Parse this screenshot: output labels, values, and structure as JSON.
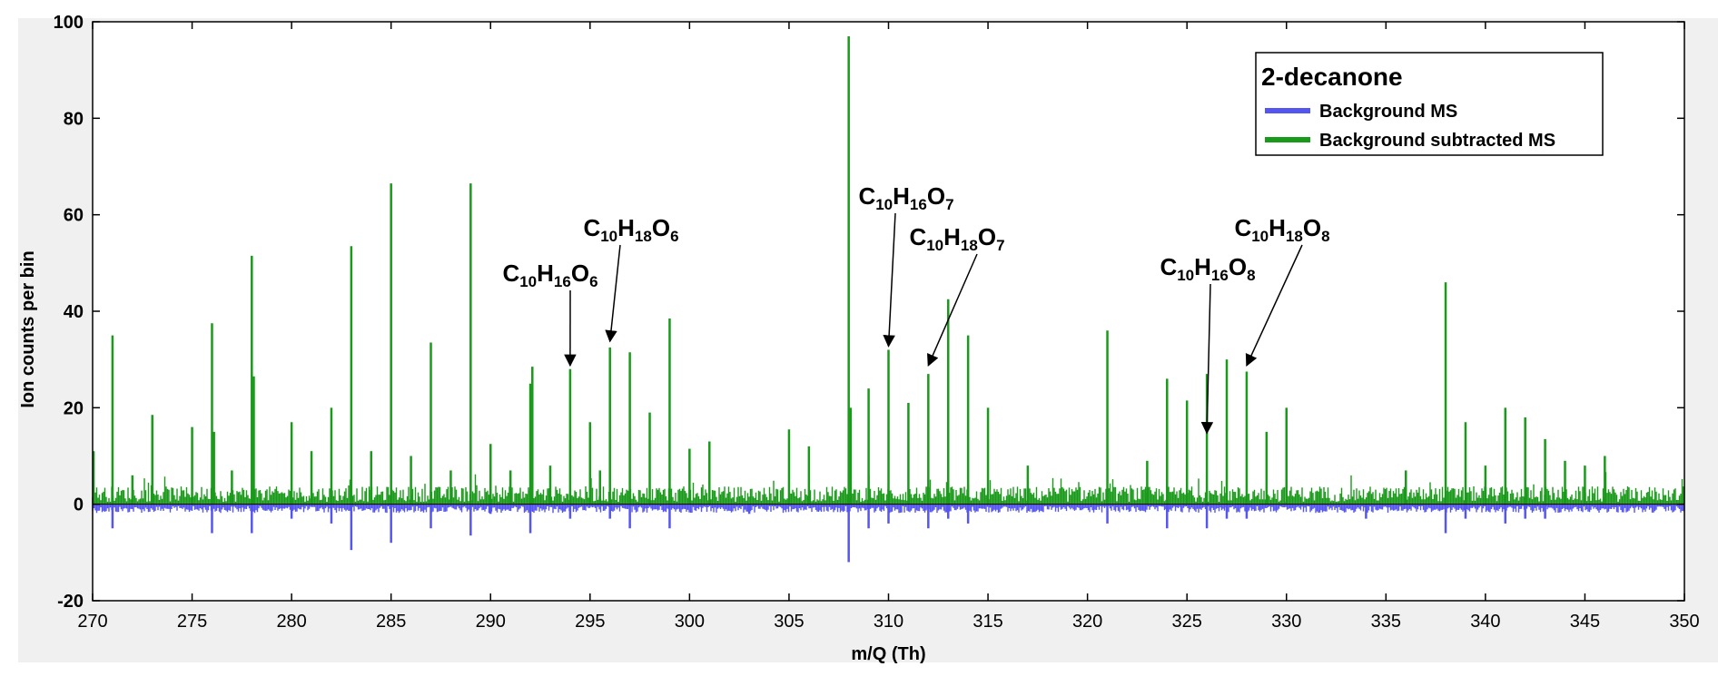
{
  "chart_data": {
    "type": "line",
    "title": "",
    "xlabel": "m/Q (Th)",
    "ylabel": "Ion counts per bin",
    "xlim": [
      270,
      350
    ],
    "ylim": [
      -20,
      100
    ],
    "xticks": [
      270,
      275,
      280,
      285,
      290,
      295,
      300,
      305,
      310,
      315,
      320,
      325,
      330,
      335,
      340,
      345,
      350
    ],
    "yticks": [
      -20,
      0,
      20,
      40,
      60,
      80,
      100
    ],
    "grid": false,
    "legend": {
      "title": "2-decanone",
      "placement": "top-right",
      "entries": [
        "Background MS",
        "Background subtracted MS"
      ]
    },
    "colors": {
      "background": "#5555f0",
      "subtracted": "#1a9a1a",
      "plot_bg": "#ffffff",
      "frame_bg": "#f0f0f0"
    },
    "series": [
      {
        "name": "Background MS",
        "peaks": [
          {
            "x": 271.0,
            "y": -5
          },
          {
            "x": 276.0,
            "y": -6
          },
          {
            "x": 278.0,
            "y": -6
          },
          {
            "x": 280.0,
            "y": -3
          },
          {
            "x": 282.0,
            "y": -4
          },
          {
            "x": 283.0,
            "y": -9.5
          },
          {
            "x": 285.0,
            "y": -8
          },
          {
            "x": 287.0,
            "y": -5
          },
          {
            "x": 289.0,
            "y": -6.5
          },
          {
            "x": 290.0,
            "y": -2
          },
          {
            "x": 292.0,
            "y": -6
          },
          {
            "x": 294.0,
            "y": -3
          },
          {
            "x": 296.0,
            "y": -3
          },
          {
            "x": 297.0,
            "y": -5
          },
          {
            "x": 299.0,
            "y": -5
          },
          {
            "x": 303.0,
            "y": -2
          },
          {
            "x": 308.0,
            "y": -12
          },
          {
            "x": 309.0,
            "y": -5
          },
          {
            "x": 310.0,
            "y": -4
          },
          {
            "x": 312.0,
            "y": -5
          },
          {
            "x": 313.0,
            "y": -3
          },
          {
            "x": 314.0,
            "y": -4
          },
          {
            "x": 321.0,
            "y": -4
          },
          {
            "x": 324.0,
            "y": -5
          },
          {
            "x": 326.0,
            "y": -5
          },
          {
            "x": 327.0,
            "y": -3
          },
          {
            "x": 328.0,
            "y": -3
          },
          {
            "x": 334.0,
            "y": -3
          },
          {
            "x": 338.0,
            "y": -6
          },
          {
            "x": 339.0,
            "y": -3
          },
          {
            "x": 341.0,
            "y": -4
          },
          {
            "x": 342.0,
            "y": -3
          },
          {
            "x": 343.0,
            "y": -3
          }
        ]
      },
      {
        "name": "Background subtracted MS",
        "peaks": [
          {
            "x": 270.05,
            "y": 11
          },
          {
            "x": 271.0,
            "y": 35
          },
          {
            "x": 272.0,
            "y": 6
          },
          {
            "x": 273.0,
            "y": 18.5
          },
          {
            "x": 275.0,
            "y": 16
          },
          {
            "x": 276.0,
            "y": 37.5
          },
          {
            "x": 276.1,
            "y": 15
          },
          {
            "x": 277.0,
            "y": 7
          },
          {
            "x": 278.0,
            "y": 51.5
          },
          {
            "x": 278.1,
            "y": 26.5
          },
          {
            "x": 280.0,
            "y": 17
          },
          {
            "x": 281.0,
            "y": 11
          },
          {
            "x": 282.0,
            "y": 20
          },
          {
            "x": 283.0,
            "y": 53.5
          },
          {
            "x": 284.0,
            "y": 11
          },
          {
            "x": 285.0,
            "y": 66.5
          },
          {
            "x": 286.0,
            "y": 10
          },
          {
            "x": 287.0,
            "y": 33.5
          },
          {
            "x": 288.0,
            "y": 7
          },
          {
            "x": 289.0,
            "y": 66.5
          },
          {
            "x": 290.0,
            "y": 12.5
          },
          {
            "x": 291.0,
            "y": 7
          },
          {
            "x": 292.0,
            "y": 25
          },
          {
            "x": 292.1,
            "y": 28.5
          },
          {
            "x": 293.0,
            "y": 8
          },
          {
            "x": 294.0,
            "y": 28
          },
          {
            "x": 295.0,
            "y": 17
          },
          {
            "x": 295.5,
            "y": 7
          },
          {
            "x": 296.0,
            "y": 32.5
          },
          {
            "x": 297.0,
            "y": 31.5
          },
          {
            "x": 298.0,
            "y": 19
          },
          {
            "x": 299.0,
            "y": 38.5
          },
          {
            "x": 300.0,
            "y": 11.5
          },
          {
            "x": 301.0,
            "y": 13
          },
          {
            "x": 305.0,
            "y": 15.5
          },
          {
            "x": 306.0,
            "y": 12
          },
          {
            "x": 308.0,
            "y": 97
          },
          {
            "x": 308.1,
            "y": 20
          },
          {
            "x": 309.0,
            "y": 24
          },
          {
            "x": 310.0,
            "y": 32
          },
          {
            "x": 311.0,
            "y": 21
          },
          {
            "x": 312.0,
            "y": 27
          },
          {
            "x": 313.0,
            "y": 42.5
          },
          {
            "x": 314.0,
            "y": 35
          },
          {
            "x": 315.0,
            "y": 20
          },
          {
            "x": 317.0,
            "y": 8
          },
          {
            "x": 321.0,
            "y": 36
          },
          {
            "x": 323.0,
            "y": 9
          },
          {
            "x": 324.0,
            "y": 26
          },
          {
            "x": 325.0,
            "y": 21.5
          },
          {
            "x": 326.0,
            "y": 27
          },
          {
            "x": 327.0,
            "y": 30
          },
          {
            "x": 328.0,
            "y": 27.5
          },
          {
            "x": 329.0,
            "y": 15
          },
          {
            "x": 330.0,
            "y": 20
          },
          {
            "x": 336.0,
            "y": 7
          },
          {
            "x": 338.0,
            "y": 46
          },
          {
            "x": 339.0,
            "y": 17
          },
          {
            "x": 340.0,
            "y": 8
          },
          {
            "x": 341.0,
            "y": 20
          },
          {
            "x": 342.0,
            "y": 18
          },
          {
            "x": 343.0,
            "y": 13.5
          },
          {
            "x": 344.0,
            "y": 9
          },
          {
            "x": 345.0,
            "y": 8
          },
          {
            "x": 346.0,
            "y": 10
          }
        ]
      }
    ],
    "annotations": [
      {
        "formula": [
          "C",
          "10",
          "H",
          "16",
          "O",
          "6"
        ],
        "target": {
          "x": 294.0,
          "y": 28
        }
      },
      {
        "formula": [
          "C",
          "10",
          "H",
          "18",
          "O",
          "6"
        ],
        "target": {
          "x": 296.0,
          "y": 33
        }
      },
      {
        "formula": [
          "C",
          "10",
          "H",
          "16",
          "O",
          "7"
        ],
        "target": {
          "x": 310.0,
          "y": 32
        }
      },
      {
        "formula": [
          "C",
          "10",
          "H",
          "18",
          "O",
          "7"
        ],
        "target": {
          "x": 312.0,
          "y": 28
        }
      },
      {
        "formula": [
          "C",
          "10",
          "H",
          "16",
          "O",
          "8"
        ],
        "target": {
          "x": 326.0,
          "y": 14
        }
      },
      {
        "formula": [
          "C",
          "10",
          "H",
          "18",
          "O",
          "8"
        ],
        "target": {
          "x": 328.0,
          "y": 28
        }
      }
    ]
  }
}
